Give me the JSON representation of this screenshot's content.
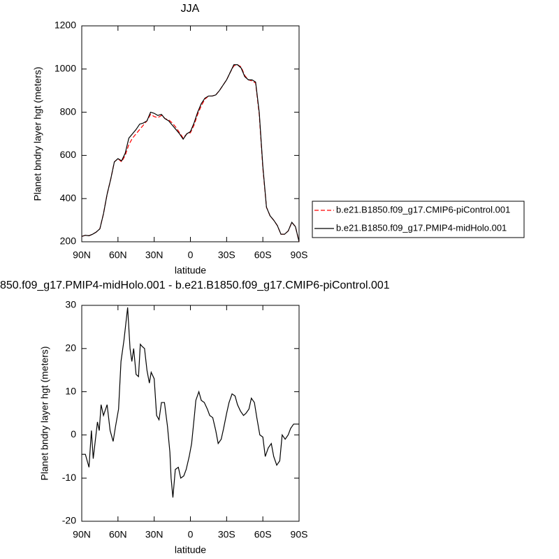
{
  "chart_data": [
    {
      "type": "line",
      "title": "JJA",
      "xlabel": "latitude",
      "ylabel": "Planet bndry layer hgt (meters)",
      "x": [
        90,
        87,
        84,
        81,
        78,
        75,
        72,
        69,
        66,
        63,
        60,
        57,
        54,
        51,
        48,
        45,
        42,
        39,
        36,
        33,
        30,
        27,
        24,
        21,
        18,
        15,
        12,
        9,
        6,
        3,
        0,
        -3,
        -6,
        -9,
        -12,
        -15,
        -18,
        -21,
        -24,
        -27,
        -30,
        -33,
        -36,
        -39,
        -42,
        -45,
        -48,
        -51,
        -54,
        -57,
        -60,
        -63,
        -66,
        -69,
        -72,
        -75,
        -78,
        -81,
        -84,
        -87,
        -90
      ],
      "series": [
        {
          "name": "b.e21.B1850.f09_g17.CMIP6-piControl.001",
          "color": "#ff0000",
          "dashed": true,
          "values": [
            225,
            230,
            228,
            235,
            245,
            260,
            330,
            420,
            490,
            570,
            585,
            570,
            600,
            650,
            680,
            700,
            720,
            740,
            760,
            790,
            780,
            775,
            785,
            770,
            765,
            750,
            730,
            705,
            680,
            700,
            705,
            740,
            790,
            830,
            860,
            875,
            875,
            880,
            900,
            925,
            950,
            985,
            1015,
            1020,
            1010,
            970,
            950,
            945,
            935,
            790,
            540,
            360,
            320,
            300,
            275,
            235,
            235,
            250,
            290,
            270,
            200
          ]
        },
        {
          "name": "b.e21.B1850.f09_g17.PMIP4-midHolo.001",
          "color": "#000000",
          "dashed": false,
          "values": [
            225,
            230,
            228,
            235,
            245,
            260,
            330,
            420,
            490,
            570,
            585,
            575,
            610,
            680,
            700,
            720,
            745,
            750,
            760,
            800,
            795,
            785,
            790,
            770,
            760,
            740,
            720,
            700,
            675,
            700,
            710,
            750,
            800,
            840,
            865,
            875,
            875,
            880,
            900,
            925,
            950,
            985,
            1020,
            1020,
            1005,
            965,
            950,
            950,
            940,
            800,
            550,
            360,
            320,
            300,
            275,
            235,
            235,
            250,
            290,
            270,
            200
          ]
        }
      ],
      "xlim": [
        90,
        -90
      ],
      "xticks": [
        {
          "value": 90,
          "label": "90N"
        },
        {
          "value": 60,
          "label": "60N"
        },
        {
          "value": 30,
          "label": "30N"
        },
        0,
        {
          "value": -30,
          "label": "30S"
        },
        {
          "value": -60,
          "label": "60S"
        },
        {
          "value": -90,
          "label": "90S"
        }
      ],
      "ylim": [
        200,
        1200
      ],
      "yticks": [
        200,
        400,
        600,
        800,
        1000,
        1200
      ],
      "legend": "right"
    },
    {
      "type": "line",
      "title": "850.f09_g17.PMIP4-midHolo.001 - b.e21.B1850.f09_g17.CMIP6-piControl.001",
      "xlabel": "latitude",
      "ylabel": "Planet bndry layer hgt (meters)",
      "x": [
        90,
        87,
        84,
        82,
        80.5,
        77,
        75.5,
        74,
        72,
        69,
        66.5,
        64,
        62,
        59.5,
        57.5,
        55,
        52,
        50,
        48.5,
        47,
        45,
        43,
        41.5,
        40,
        38,
        36,
        34,
        32.5,
        30,
        28,
        26,
        24,
        21.5,
        19,
        17,
        16,
        14.5,
        12.5,
        10,
        8,
        5.5,
        3.5,
        1,
        -1,
        -3.5,
        -4.5,
        -7,
        -9,
        -11.5,
        -14,
        -16,
        -18.5,
        -21,
        -23,
        -25.5,
        -27.5,
        -30,
        -32,
        -34.5,
        -37,
        -39,
        -41.5,
        -44,
        -46,
        -48.5,
        -50.5,
        -53,
        -55,
        -57.5,
        -60,
        -62,
        -64.5,
        -67,
        -69,
        -71.5,
        -74,
        -76,
        -78.5,
        -81,
        -83,
        -85.5,
        -90
      ],
      "values": [
        -4.5,
        -4.5,
        -7.5,
        1,
        -5.5,
        3,
        1,
        7,
        4.5,
        7,
        1,
        -1.5,
        2,
        6,
        17,
        22,
        29.5,
        20,
        17,
        20,
        14,
        13.5,
        21,
        20.5,
        20,
        15,
        12,
        14.5,
        13,
        4.5,
        3.5,
        7.5,
        7.5,
        2,
        -4,
        -10,
        -14.5,
        -8,
        -7.5,
        -10,
        -9.5,
        -8,
        -5,
        -2,
        5,
        8,
        10,
        8,
        7.5,
        6,
        4.5,
        4,
        1,
        -2,
        -1,
        1.5,
        5,
        7.5,
        9.5,
        9,
        7,
        5.5,
        4.5,
        5,
        6,
        8.5,
        7.5,
        4,
        0,
        -0.5,
        -5,
        -3,
        -2,
        -5,
        -7,
        -6,
        0,
        -1,
        0,
        1.5,
        2.5,
        2.5
      ],
      "color": "#000000",
      "xlim": [
        90,
        -90
      ],
      "xticks": [
        {
          "value": 90,
          "label": "90N"
        },
        {
          "value": 60,
          "label": "60N"
        },
        {
          "value": 30,
          "label": "30N"
        },
        0,
        {
          "value": -30,
          "label": "30S"
        },
        {
          "value": -60,
          "label": "60S"
        },
        {
          "value": -90,
          "label": "90S"
        }
      ],
      "ylim": [
        -20,
        30
      ],
      "yticks": [
        -20,
        -10,
        0,
        10,
        20,
        30
      ]
    }
  ]
}
